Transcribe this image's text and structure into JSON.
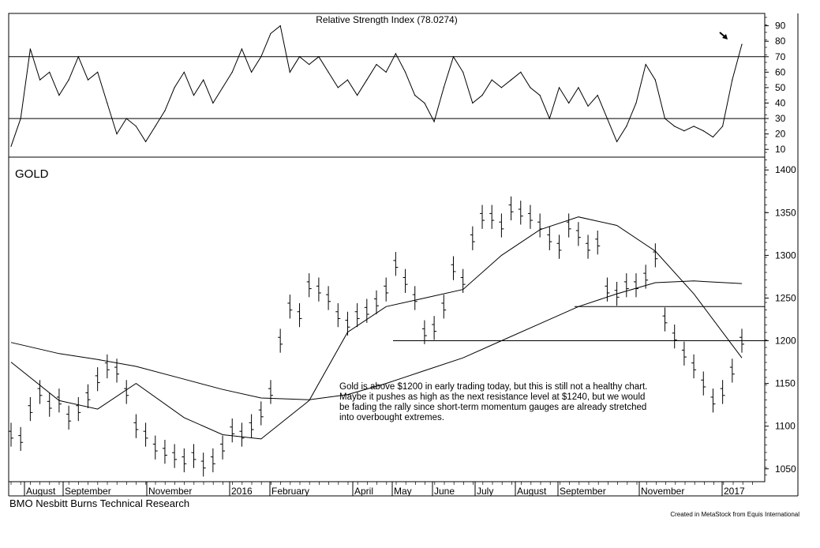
{
  "chart_data": [
    {
      "type": "line",
      "title": "Relative Strength Index (78.0274)",
      "ylim": [
        5,
        98
      ],
      "yticks": [
        10,
        20,
        30,
        40,
        50,
        60,
        70,
        80,
        90
      ],
      "reference_lines": [
        30,
        70
      ],
      "series": [
        {
          "x": [
            "2015-07-27",
            "2015-08-03",
            "2015-08-10",
            "2015-08-17",
            "2015-08-24",
            "2015-08-31",
            "2015-09-07",
            "2015-09-14",
            "2015-09-21",
            "2015-09-28",
            "2015-10-05",
            "2015-10-12",
            "2015-10-19",
            "2015-10-26",
            "2015-11-02",
            "2015-11-09",
            "2015-11-16",
            "2015-11-23",
            "2015-11-30",
            "2015-12-07",
            "2015-12-14",
            "2015-12-21",
            "2015-12-28",
            "2016-01-04",
            "2016-01-11",
            "2016-01-18",
            "2016-01-25",
            "2016-02-01",
            "2016-02-08",
            "2016-02-15",
            "2016-02-22",
            "2016-02-29",
            "2016-03-07",
            "2016-03-14",
            "2016-03-21",
            "2016-03-28",
            "2016-04-04",
            "2016-04-11",
            "2016-04-18",
            "2016-04-25",
            "2016-05-02",
            "2016-05-09",
            "2016-05-16",
            "2016-05-23",
            "2016-05-30",
            "2016-06-06",
            "2016-06-13",
            "2016-06-20",
            "2016-06-27",
            "2016-07-04",
            "2016-07-11",
            "2016-07-18",
            "2016-07-25",
            "2016-08-01",
            "2016-08-08",
            "2016-08-15",
            "2016-08-22",
            "2016-08-29",
            "2016-09-05",
            "2016-09-12",
            "2016-09-19",
            "2016-09-26",
            "2016-10-03",
            "2016-10-10",
            "2016-10-17",
            "2016-10-24",
            "2016-10-31",
            "2016-11-07",
            "2016-11-14",
            "2016-11-21",
            "2016-11-28",
            "2016-12-05",
            "2016-12-12",
            "2016-12-19",
            "2016-12-26",
            "2017-01-02",
            "2017-01-09"
          ],
          "values": [
            12,
            30,
            75,
            55,
            60,
            45,
            55,
            70,
            55,
            60,
            40,
            20,
            30,
            25,
            15,
            25,
            35,
            50,
            60,
            45,
            55,
            40,
            50,
            60,
            75,
            60,
            70,
            85,
            90,
            60,
            70,
            65,
            70,
            60,
            50,
            55,
            45,
            55,
            65,
            60,
            72,
            60,
            45,
            40,
            28,
            50,
            70,
            60,
            40,
            45,
            55,
            50,
            55,
            60,
            50,
            45,
            30,
            50,
            40,
            50,
            38,
            45,
            30,
            15,
            25,
            40,
            65,
            55,
            30,
            25,
            22,
            25,
            22,
            18,
            25,
            55,
            78
          ]
        }
      ]
    },
    {
      "type": "bar",
      "title": "GOLD",
      "ylim": [
        1035,
        1415
      ],
      "yticks": [
        1050,
        1100,
        1150,
        1200,
        1250,
        1300,
        1350,
        1400
      ],
      "x_tick_labels": [
        "August",
        "September",
        "November",
        "2016",
        "February",
        "April",
        "May",
        "June",
        "July",
        "August",
        "September",
        "November",
        "2017"
      ],
      "reference_lines": [
        1200,
        1240
      ],
      "series": [
        {
          "x": [
            "2015-07-27",
            "2015-08-03",
            "2015-08-10",
            "2015-08-17",
            "2015-08-24",
            "2015-08-31",
            "2015-09-07",
            "2015-09-14",
            "2015-09-21",
            "2015-09-28",
            "2015-10-05",
            "2015-10-12",
            "2015-10-19",
            "2015-10-26",
            "2015-11-02",
            "2015-11-09",
            "2015-11-16",
            "2015-11-23",
            "2015-11-30",
            "2015-12-07",
            "2015-12-14",
            "2015-12-21",
            "2015-12-28",
            "2016-01-04",
            "2016-01-11",
            "2016-01-18",
            "2016-01-25",
            "2016-02-01",
            "2016-02-08",
            "2016-02-15",
            "2016-02-22",
            "2016-02-29",
            "2016-03-07",
            "2016-03-14",
            "2016-03-21",
            "2016-03-28",
            "2016-04-04",
            "2016-04-11",
            "2016-04-18",
            "2016-04-25",
            "2016-05-02",
            "2016-05-09",
            "2016-05-16",
            "2016-05-23",
            "2016-05-30",
            "2016-06-06",
            "2016-06-13",
            "2016-06-20",
            "2016-06-27",
            "2016-07-04",
            "2016-07-11",
            "2016-07-18",
            "2016-07-25",
            "2016-08-01",
            "2016-08-08",
            "2016-08-15",
            "2016-08-22",
            "2016-08-29",
            "2016-09-05",
            "2016-09-12",
            "2016-09-19",
            "2016-09-26",
            "2016-10-03",
            "2016-10-10",
            "2016-10-17",
            "2016-10-24",
            "2016-10-31",
            "2016-11-07",
            "2016-11-14",
            "2016-11-21",
            "2016-11-28",
            "2016-12-05",
            "2016-12-12",
            "2016-12-19",
            "2016-12-26",
            "2017-01-02",
            "2017-01-09"
          ],
          "values": [
            1090,
            1085,
            1120,
            1140,
            1125,
            1130,
            1110,
            1120,
            1135,
            1155,
            1170,
            1165,
            1140,
            1100,
            1090,
            1075,
            1070,
            1065,
            1060,
            1065,
            1055,
            1060,
            1075,
            1095,
            1090,
            1100,
            1115,
            1140,
            1200,
            1240,
            1230,
            1265,
            1260,
            1250,
            1230,
            1220,
            1230,
            1235,
            1245,
            1260,
            1290,
            1270,
            1250,
            1210,
            1215,
            1240,
            1285,
            1270,
            1320,
            1345,
            1345,
            1335,
            1355,
            1350,
            1345,
            1335,
            1320,
            1310,
            1335,
            1325,
            1310,
            1315,
            1260,
            1255,
            1265,
            1265,
            1275,
            1300,
            1225,
            1205,
            1185,
            1170,
            1150,
            1130,
            1140,
            1165,
            1200
          ]
        },
        {
          "x": [
            "2015-07-27",
            "2015-08-31",
            "2015-09-28",
            "2015-10-26",
            "2015-11-30",
            "2015-12-28",
            "2016-01-25",
            "2016-02-29",
            "2016-03-28",
            "2016-04-25",
            "2016-05-23",
            "2016-06-20",
            "2016-07-18",
            "2016-08-15",
            "2016-09-12",
            "2016-10-10",
            "2016-11-07",
            "2016-12-05",
            "2017-01-09"
          ],
          "values": [
            1175,
            1130,
            1120,
            1150,
            1110,
            1090,
            1085,
            1130,
            1210,
            1240,
            1250,
            1260,
            1300,
            1330,
            1345,
            1335,
            1305,
            1255,
            1180
          ]
        },
        {
          "x": [
            "2015-07-27",
            "2015-08-31",
            "2015-09-28",
            "2015-10-26",
            "2015-11-30",
            "2015-12-28",
            "2016-01-25",
            "2016-02-29",
            "2016-03-28",
            "2016-04-25",
            "2016-05-23",
            "2016-06-20",
            "2016-07-18",
            "2016-08-15",
            "2016-09-12",
            "2016-10-10",
            "2016-11-07",
            "2016-12-05",
            "2017-01-09"
          ],
          "values": [
            1198,
            1185,
            1178,
            1170,
            1155,
            1143,
            1133,
            1131,
            1137,
            1150,
            1165,
            1180,
            1200,
            1220,
            1240,
            1255,
            1268,
            1270,
            1267
          ]
        }
      ]
    }
  ],
  "annotation": {
    "lines": [
      "Gold is above $1200 in early trading today, but this is still not a healthy chart.",
      "Maybe it pushes as high as the next resistance level at $1240, but we would",
      "be fading the rally since short-term momentum gauges are already stretched",
      "into overbought extremes."
    ]
  },
  "footer": {
    "source": "BMO Nesbitt Burns Technical Research",
    "credit": "Created in MetaStock from Equis International"
  }
}
